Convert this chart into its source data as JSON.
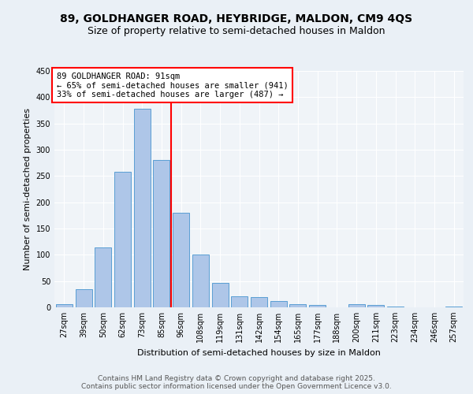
{
  "title": "89, GOLDHANGER ROAD, HEYBRIDGE, MALDON, CM9 4QS",
  "subtitle": "Size of property relative to semi-detached houses in Maldon",
  "xlabel": "Distribution of semi-detached houses by size in Maldon",
  "ylabel": "Number of semi-detached properties",
  "categories": [
    "27sqm",
    "39sqm",
    "50sqm",
    "62sqm",
    "73sqm",
    "85sqm",
    "96sqm",
    "108sqm",
    "119sqm",
    "131sqm",
    "142sqm",
    "154sqm",
    "165sqm",
    "177sqm",
    "188sqm",
    "200sqm",
    "211sqm",
    "223sqm",
    "234sqm",
    "246sqm",
    "257sqm"
  ],
  "values": [
    6,
    34,
    114,
    258,
    378,
    281,
    180,
    100,
    47,
    21,
    20,
    12,
    6,
    4,
    0,
    6,
    5,
    2,
    0,
    0,
    2
  ],
  "bar_color": "#aec6e8",
  "bar_edge_color": "#5a9fd4",
  "vline_x": 5.5,
  "vline_color": "red",
  "annotation_title": "89 GOLDHANGER ROAD: 91sqm",
  "annotation_line1": "← 65% of semi-detached houses are smaller (941)",
  "annotation_line2": "33% of semi-detached houses are larger (487) →",
  "annotation_box_color": "#ffffff",
  "annotation_box_edge_color": "red",
  "ylim": [
    0,
    450
  ],
  "yticks": [
    0,
    50,
    100,
    150,
    200,
    250,
    300,
    350,
    400,
    450
  ],
  "footer_line1": "Contains HM Land Registry data © Crown copyright and database right 2025.",
  "footer_line2": "Contains public sector information licensed under the Open Government Licence v3.0.",
  "bg_color": "#eaf0f6",
  "plot_bg_color": "#f0f4f8",
  "title_fontsize": 10,
  "subtitle_fontsize": 9,
  "label_fontsize": 8,
  "tick_fontsize": 7,
  "annotation_fontsize": 7.5,
  "footer_fontsize": 6.5
}
